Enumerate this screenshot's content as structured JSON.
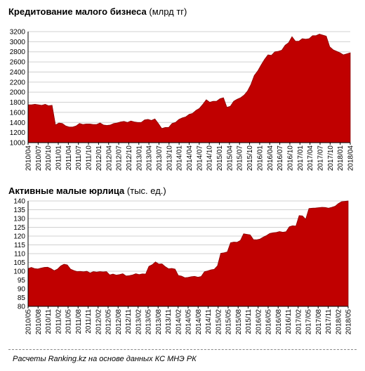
{
  "charts": [
    {
      "title": "Кредитование малого бизнеса",
      "unit": "(млрд тг)"
    },
    {
      "title": "Активные малые юрлица",
      "unit": "(тыс. ед.)"
    }
  ],
  "footer": "Расчеты Ranking.kz на основе данных КС МНЭ РК",
  "colors": {
    "area_fill": "#c00000",
    "area_stroke": "#8b0000",
    "grid": "#d0d0d0"
  },
  "chart_data": [
    {
      "type": "area",
      "title": "Кредитование малого бизнеса (млрд тг)",
      "ylim": [
        1000,
        3200
      ],
      "yticks": [
        1000,
        1200,
        1400,
        1600,
        1800,
        2000,
        2200,
        2400,
        2600,
        2800,
        3000,
        3200
      ],
      "grid": true,
      "xtick_labels": [
        "2010/04",
        "2010/07",
        "2010/10",
        "2011/01",
        "2011/04",
        "2011/07",
        "2011/10",
        "2012/01",
        "2012/04",
        "2012/07",
        "2012/10",
        "2013/01",
        "2013/04",
        "2013/07",
        "2013/10",
        "2014/01",
        "2014/04",
        "2014/07",
        "2014/10",
        "2015/01",
        "2015/04",
        "2015/07",
        "2015/10",
        "2016/01",
        "2016/04",
        "2016/07",
        "2016/10",
        "2017/01",
        "2017/04",
        "2017/07",
        "2017/10",
        "2018/01",
        "2018/04"
      ],
      "values": [
        1750,
        1750,
        1760,
        1750,
        1740,
        1760,
        1730,
        1740,
        1350,
        1390,
        1380,
        1330,
        1310,
        1310,
        1330,
        1380,
        1360,
        1370,
        1370,
        1360,
        1360,
        1390,
        1350,
        1340,
        1350,
        1380,
        1390,
        1410,
        1420,
        1400,
        1430,
        1410,
        1400,
        1400,
        1450,
        1460,
        1440,
        1470,
        1380,
        1280,
        1300,
        1300,
        1380,
        1400,
        1460,
        1490,
        1510,
        1560,
        1580,
        1640,
        1680,
        1760,
        1850,
        1800,
        1820,
        1820,
        1870,
        1890,
        1700,
        1720,
        1820,
        1860,
        1890,
        1940,
        2020,
        2150,
        2330,
        2420,
        2540,
        2650,
        2740,
        2730,
        2800,
        2810,
        2830,
        2930,
        2980,
        3100,
        3010,
        3010,
        3060,
        3050,
        3060,
        3120,
        3120,
        3150,
        3130,
        3110,
        2900,
        2840,
        2810,
        2780,
        2740,
        2760,
        2780
      ]
    },
    {
      "type": "area",
      "title": "Активные малые юрлица (тыс. ед.)",
      "ylim": [
        80,
        140
      ],
      "yticks": [
        80,
        85,
        90,
        95,
        100,
        105,
        110,
        115,
        120,
        125,
        130,
        135,
        140
      ],
      "grid": true,
      "xtick_labels": [
        "2010/05",
        "2010/08",
        "2010/11",
        "2011/02",
        "2011/05",
        "2011/08",
        "2011/11",
        "2012/02",
        "2012/05",
        "2012/08",
        "2012/11",
        "2013/02",
        "2013/05",
        "2013/08",
        "2013/11",
        "2014/02",
        "2014/05",
        "2014/08",
        "2014/11",
        "2015/02",
        "2015/05",
        "2015/08",
        "2015/11",
        "2016/02",
        "2016/05",
        "2016/08",
        "2016/11",
        "2017/02",
        "2017/05",
        "2017/08",
        "2017/11",
        "2018/02",
        "2018/05"
      ],
      "values": [
        101.5,
        102.2,
        101.5,
        101.3,
        101.8,
        102.2,
        102.3,
        101.5,
        100.3,
        101.2,
        103,
        104,
        103.6,
        101.2,
        100.4,
        99.8,
        99.9,
        99.7,
        100,
        99,
        99.8,
        99.5,
        99.8,
        99.6,
        99.8,
        97.9,
        98.4,
        97.8,
        98.1,
        98.6,
        97.3,
        97.5,
        97.9,
        98.6,
        98.1,
        98.5,
        98.4,
        102.8,
        103.7,
        105.3,
        104.1,
        104.2,
        102.6,
        101.4,
        101.6,
        101.2,
        97.6,
        97.2,
        96.3,
        96.5,
        96.9,
        97.1,
        96.6,
        97,
        99.7,
        100.2,
        100.8,
        101.1,
        103.1,
        110.2,
        110.5,
        111,
        116.2,
        116.6,
        116.5,
        117.5,
        121.3,
        121,
        120.7,
        118,
        117.9,
        118.3,
        119.4,
        120.3,
        121.5,
        121.9,
        122.1,
        122.6,
        122.2,
        122.5,
        125.3,
        125.9,
        125.7,
        131.7,
        131.5,
        129.6,
        135.7,
        135.9,
        136,
        136.2,
        136.4,
        136.3,
        135.9,
        136.4,
        137,
        138.5,
        139.6,
        139.8,
        140
      ]
    }
  ]
}
